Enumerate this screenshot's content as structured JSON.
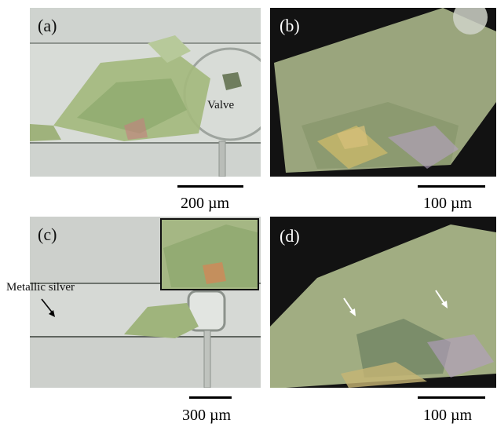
{
  "panels": {
    "a": {
      "label": "(a)",
      "annotation": "Valve",
      "scale": "200 µm"
    },
    "b": {
      "label": "(b)",
      "scale": "100 µm"
    },
    "c": {
      "label": "(c)",
      "annotation": "Metallic silver",
      "scale": "300 µm"
    },
    "d": {
      "label": "(d)",
      "scale": "100 µm"
    }
  },
  "colors": {
    "bright_field_background": "#cfd3cf",
    "crystal_green": "#a4b97e",
    "dark_field_background": "#121212",
    "scale_bar": "#000000"
  }
}
